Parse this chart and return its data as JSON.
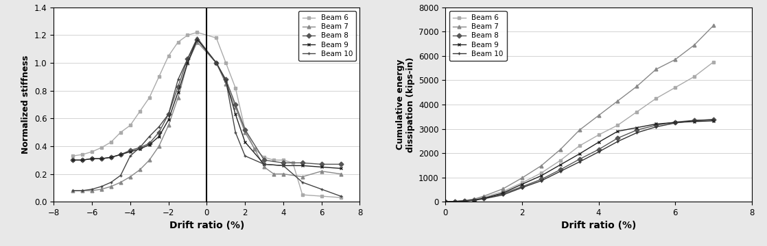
{
  "stiffness": {
    "beam6": {
      "x": [
        -7,
        -6.5,
        -6,
        -5.5,
        -5,
        -4.5,
        -4,
        -3.5,
        -3,
        -2.5,
        -2,
        -1.5,
        -1,
        -0.5,
        0.5,
        1,
        1.5,
        2,
        2.5,
        3,
        3.5,
        4,
        4.5,
        5,
        6,
        7
      ],
      "y": [
        0.33,
        0.34,
        0.36,
        0.39,
        0.43,
        0.5,
        0.55,
        0.65,
        0.75,
        0.9,
        1.05,
        1.15,
        1.2,
        1.22,
        1.18,
        1.0,
        0.82,
        0.52,
        0.38,
        0.32,
        0.3,
        0.3,
        0.28,
        0.05,
        0.04,
        0.03
      ],
      "color": "#aaaaaa",
      "marker": "s",
      "label": "Beam 6"
    },
    "beam7": {
      "x": [
        -7,
        -6.5,
        -6,
        -5.5,
        -5,
        -4.5,
        -4,
        -3.5,
        -3,
        -2.5,
        -2,
        -1.5,
        -1,
        -0.5,
        0.5,
        1,
        1.5,
        2,
        2.5,
        3,
        3.5,
        4,
        5,
        6,
        7
      ],
      "y": [
        0.08,
        0.08,
        0.08,
        0.09,
        0.11,
        0.14,
        0.18,
        0.23,
        0.3,
        0.4,
        0.55,
        0.75,
        1.0,
        1.15,
        1.0,
        0.85,
        0.68,
        0.5,
        0.38,
        0.25,
        0.2,
        0.2,
        0.18,
        0.22,
        0.2
      ],
      "color": "#888888",
      "marker": "^",
      "label": "Beam 7"
    },
    "beam8": {
      "x": [
        -7,
        -6.5,
        -6,
        -5.5,
        -5,
        -4.5,
        -4,
        -3.5,
        -3,
        -2.5,
        -2,
        -1.5,
        -1,
        -0.5,
        0.5,
        1,
        1.5,
        2,
        3,
        4,
        5,
        6,
        7
      ],
      "y": [
        0.3,
        0.3,
        0.31,
        0.31,
        0.32,
        0.34,
        0.37,
        0.39,
        0.42,
        0.5,
        0.63,
        0.83,
        1.03,
        1.17,
        1.0,
        0.88,
        0.7,
        0.52,
        0.3,
        0.28,
        0.28,
        0.27,
        0.27
      ],
      "color": "#555555",
      "marker": "D",
      "label": "Beam 8"
    },
    "beam9": {
      "x": [
        -7,
        -6.5,
        -6,
        -5.5,
        -5,
        -4.5,
        -4,
        -3.5,
        -3,
        -2.5,
        -2,
        -1.5,
        -1,
        -0.5,
        0.5,
        1,
        1.5,
        2,
        3,
        4,
        5,
        6,
        7
      ],
      "y": [
        0.3,
        0.3,
        0.31,
        0.31,
        0.32,
        0.34,
        0.36,
        0.38,
        0.41,
        0.47,
        0.59,
        0.79,
        1.0,
        1.17,
        1.0,
        0.87,
        0.63,
        0.43,
        0.27,
        0.26,
        0.26,
        0.25,
        0.24
      ],
      "color": "#222222",
      "marker": "x",
      "label": "Beam 9"
    },
    "beam10": {
      "x": [
        -7,
        -6.5,
        -6,
        -5.5,
        -5,
        -4.5,
        -4,
        -3.5,
        -3,
        -2.5,
        -2,
        -1.5,
        -1,
        -0.5,
        0.5,
        1,
        1.5,
        2,
        3,
        4,
        5,
        6,
        7
      ],
      "y": [
        0.08,
        0.08,
        0.09,
        0.11,
        0.14,
        0.19,
        0.33,
        0.39,
        0.47,
        0.54,
        0.63,
        0.88,
        1.03,
        1.18,
        1.0,
        0.87,
        0.5,
        0.33,
        0.27,
        0.26,
        0.14,
        0.09,
        0.04
      ],
      "color": "#444444",
      "marker": "+",
      "label": "Beam 10"
    }
  },
  "energy": {
    "beam6": {
      "x": [
        0,
        0.25,
        0.5,
        0.75,
        1.0,
        1.5,
        2.0,
        2.5,
        3.0,
        3.5,
        4.0,
        4.5,
        5.0,
        5.5,
        6.0,
        6.5,
        7.0
      ],
      "y": [
        0,
        15,
        40,
        90,
        180,
        420,
        780,
        1180,
        1700,
        2300,
        2750,
        3150,
        3700,
        4250,
        4700,
        5150,
        5750
      ],
      "color": "#aaaaaa",
      "marker": "s",
      "label": "Beam 6"
    },
    "beam7": {
      "x": [
        0,
        0.25,
        0.5,
        0.75,
        1.0,
        1.5,
        2.0,
        2.5,
        3.0,
        3.5,
        4.0,
        4.5,
        5.0,
        5.5,
        6.0,
        6.5,
        7.0
      ],
      "y": [
        0,
        20,
        55,
        110,
        230,
        530,
        980,
        1480,
        2150,
        2950,
        3550,
        4150,
        4750,
        5450,
        5850,
        6450,
        7250
      ],
      "color": "#888888",
      "marker": "^",
      "label": "Beam 7"
    },
    "beam8": {
      "x": [
        0,
        0.25,
        0.5,
        0.75,
        1.0,
        1.5,
        2.0,
        2.5,
        3.0,
        3.5,
        4.0,
        4.5,
        5.0,
        5.5,
        6.0,
        6.5,
        7.0
      ],
      "y": [
        0,
        10,
        30,
        70,
        140,
        330,
        620,
        920,
        1320,
        1750,
        2150,
        2620,
        2950,
        3150,
        3280,
        3350,
        3380
      ],
      "color": "#555555",
      "marker": "D",
      "label": "Beam 8"
    },
    "beam9": {
      "x": [
        0,
        0.25,
        0.5,
        0.75,
        1.0,
        1.5,
        2.0,
        2.5,
        3.0,
        3.5,
        4.0,
        4.5,
        5.0,
        5.5,
        6.0,
        6.5,
        7.0
      ],
      "y": [
        0,
        10,
        30,
        70,
        140,
        360,
        720,
        1070,
        1520,
        1970,
        2450,
        2900,
        3050,
        3200,
        3260,
        3300,
        3330
      ],
      "color": "#222222",
      "marker": "x",
      "label": "Beam 9"
    },
    "beam10": {
      "x": [
        0,
        0.25,
        0.5,
        0.75,
        1.0,
        1.5,
        2.0,
        2.5,
        3.0,
        3.5,
        4.0,
        4.5,
        5.0,
        5.5,
        6.0,
        6.5,
        7.0
      ],
      "y": [
        0,
        8,
        25,
        60,
        120,
        280,
        580,
        860,
        1250,
        1640,
        2050,
        2480,
        2840,
        3080,
        3240,
        3340,
        3380
      ],
      "color": "#333333",
      "marker": "+",
      "label": "Beam 10"
    }
  },
  "stiffness_xlim": [
    -8,
    8
  ],
  "stiffness_ylim": [
    0,
    1.4
  ],
  "stiffness_xticks": [
    -8,
    -6,
    -4,
    -2,
    0,
    2,
    4,
    6,
    8
  ],
  "stiffness_yticks": [
    0,
    0.2,
    0.4,
    0.6,
    0.8,
    1.0,
    1.2,
    1.4
  ],
  "energy_xlim": [
    0,
    8
  ],
  "energy_ylim": [
    0,
    8000
  ],
  "energy_xticks": [
    0,
    2,
    4,
    6,
    8
  ],
  "energy_yticks": [
    0,
    1000,
    2000,
    3000,
    4000,
    5000,
    6000,
    7000,
    8000
  ],
  "xlabel": "Drift ratio (%)",
  "stiffness_ylabel": "Normalized stiffness",
  "energy_ylabel": "Cumulative energy\ndissipation (kips-in)",
  "bg_color": "#e8e8e8",
  "plot_bg": "#ffffff"
}
